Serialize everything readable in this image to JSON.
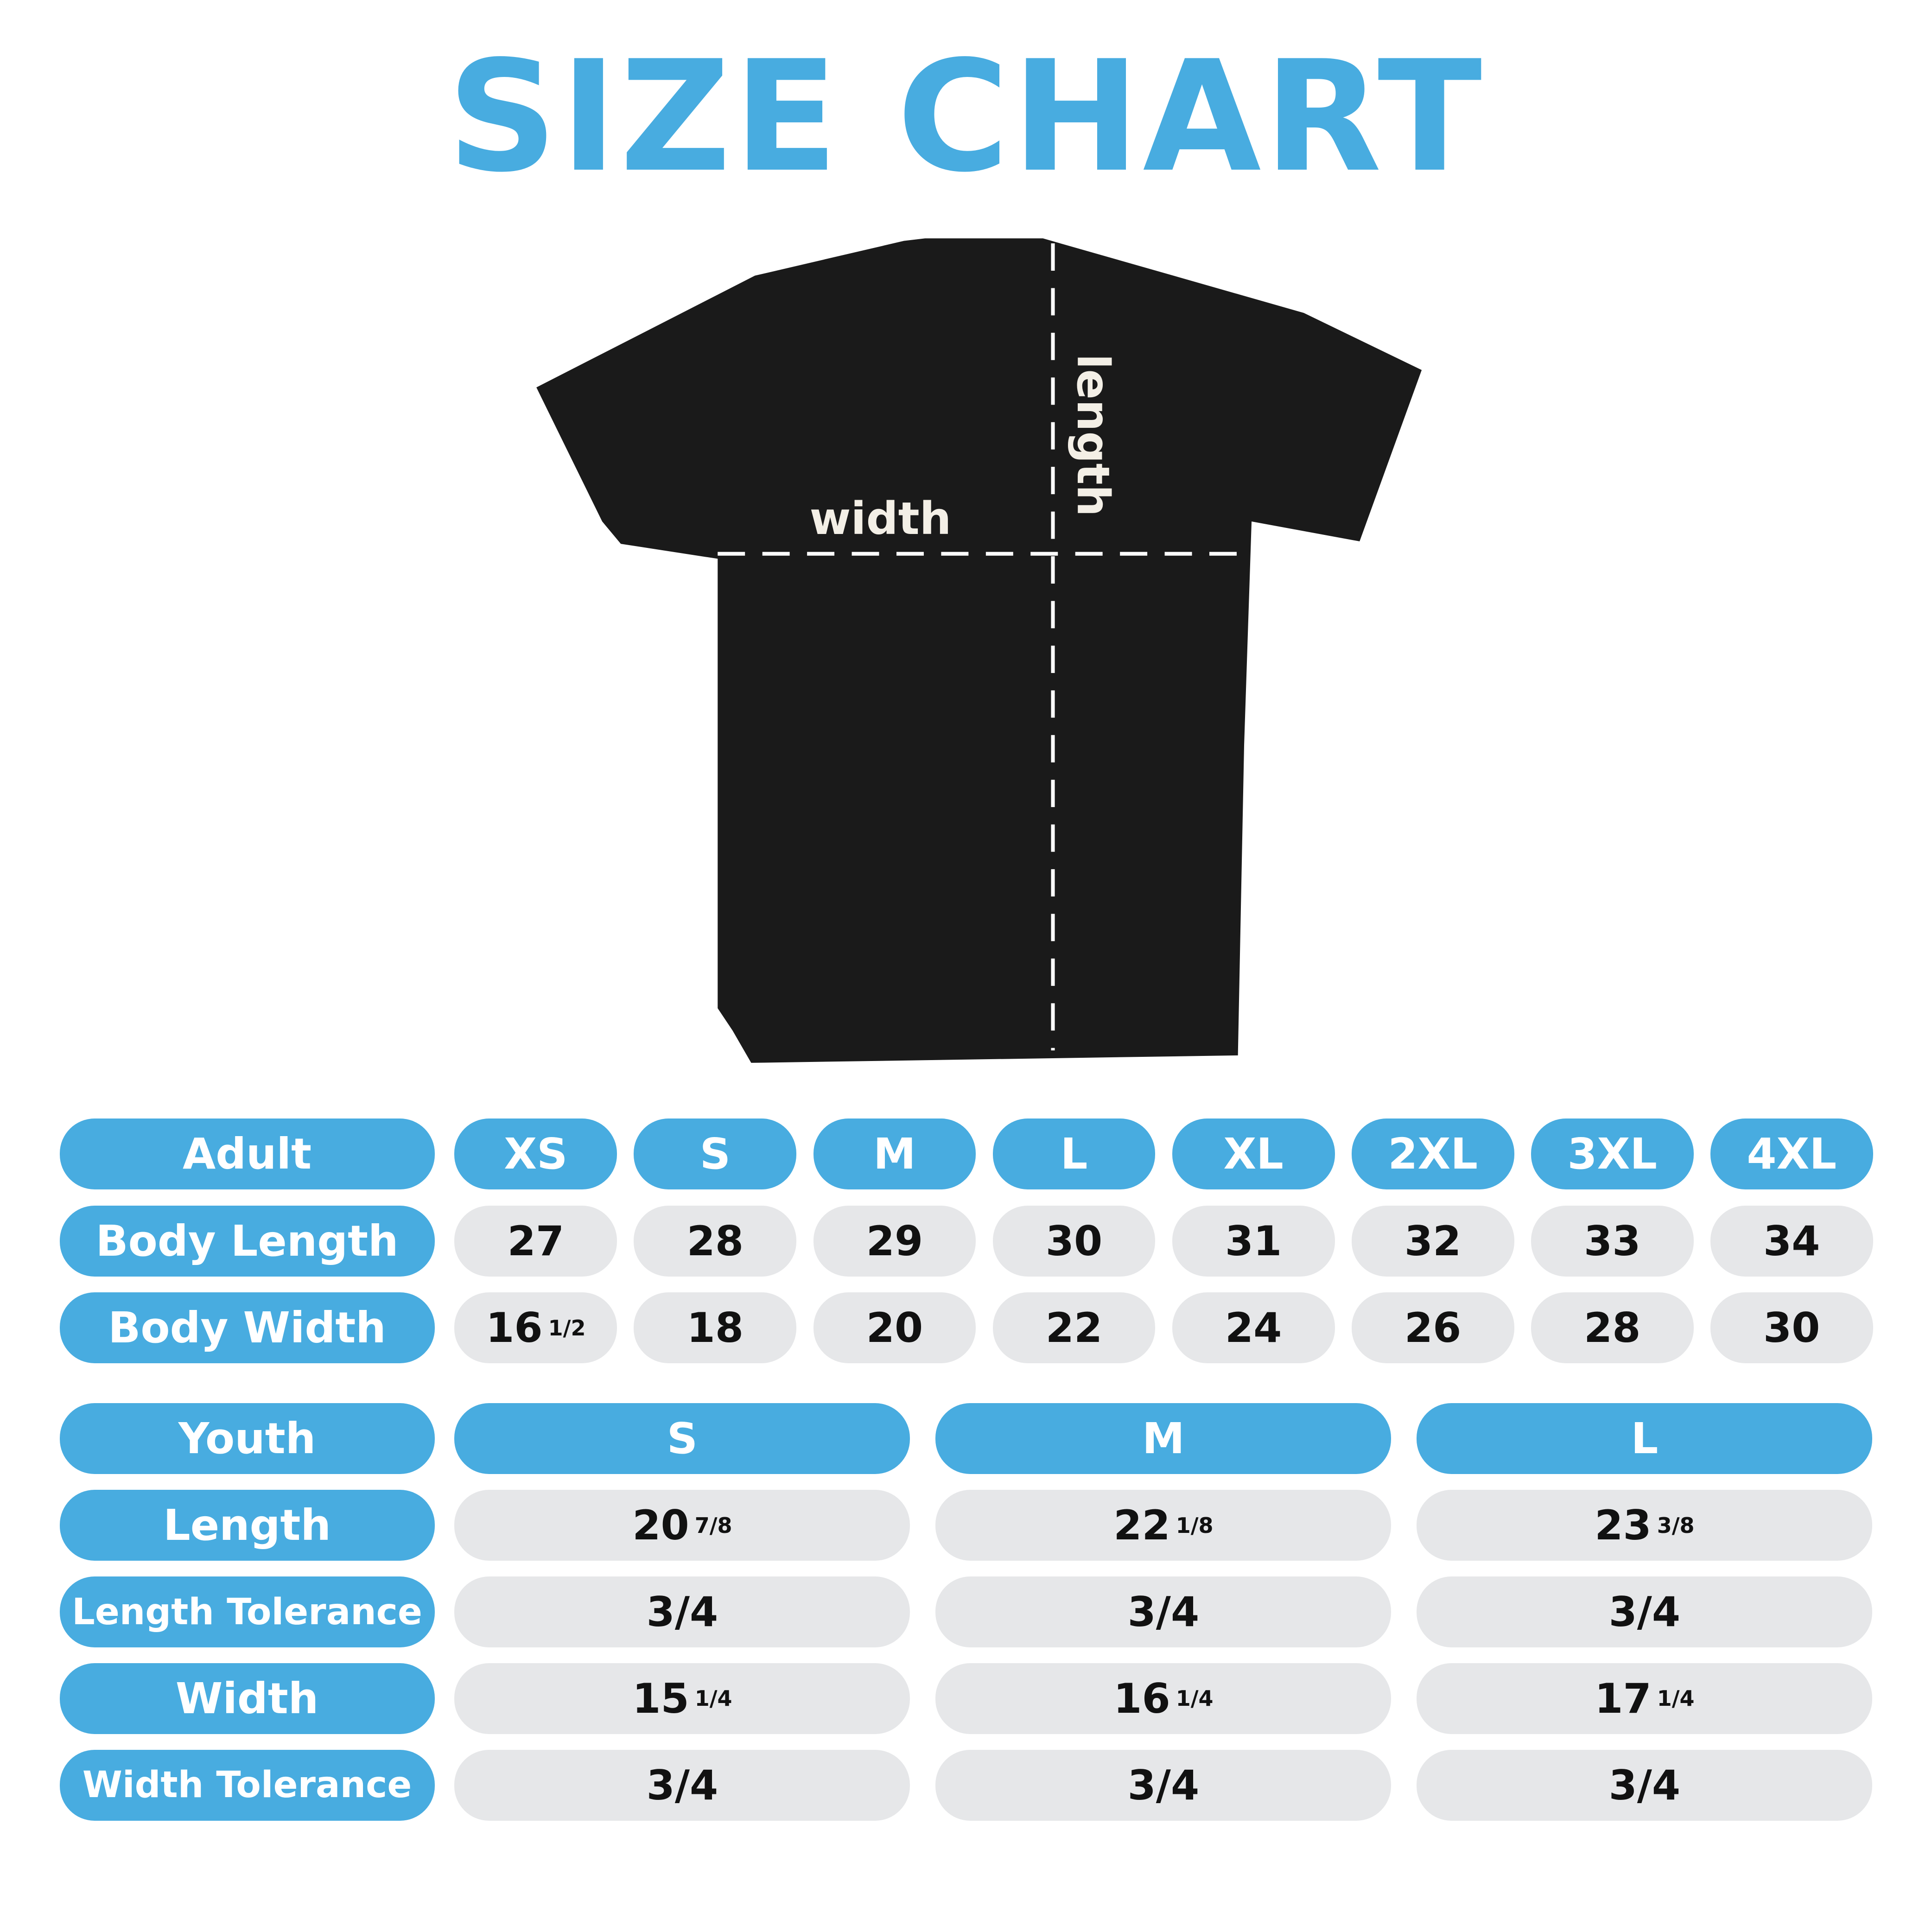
{
  "title": "SIZE CHART",
  "colors": {
    "accent": "#48ACE0",
    "cell_bg": "#E6E7E9",
    "shirt": "#1A1A1A"
  },
  "diagram": {
    "width_label": "width",
    "length_label": "length"
  },
  "adult": {
    "header": "Adult",
    "sizes": [
      "XS",
      "S",
      "M",
      "L",
      "XL",
      "2XL",
      "3XL",
      "4XL"
    ],
    "rows": [
      {
        "label": "Body Length",
        "values": [
          [
            "27",
            ""
          ],
          [
            "28",
            ""
          ],
          [
            "29",
            ""
          ],
          [
            "30",
            ""
          ],
          [
            "31",
            ""
          ],
          [
            "32",
            ""
          ],
          [
            "33",
            ""
          ],
          [
            "34",
            ""
          ]
        ]
      },
      {
        "label": "Body Width",
        "values": [
          [
            "16",
            "1/2"
          ],
          [
            "18",
            ""
          ],
          [
            "20",
            ""
          ],
          [
            "22",
            ""
          ],
          [
            "24",
            ""
          ],
          [
            "26",
            ""
          ],
          [
            "28",
            ""
          ],
          [
            "30",
            ""
          ]
        ]
      }
    ]
  },
  "youth": {
    "header": "Youth",
    "sizes": [
      "S",
      "M",
      "L"
    ],
    "rows": [
      {
        "label": "Length",
        "values": [
          [
            "20",
            "7/8"
          ],
          [
            "22",
            "1/8"
          ],
          [
            "23",
            "3/8"
          ]
        ]
      },
      {
        "label": "Length Tolerance",
        "values": [
          [
            "3/4",
            ""
          ],
          [
            "3/4",
            ""
          ],
          [
            "3/4",
            ""
          ]
        ]
      },
      {
        "label": "Width",
        "values": [
          [
            "15",
            "1/4"
          ],
          [
            "16",
            "1/4"
          ],
          [
            "17",
            "1/4"
          ]
        ]
      },
      {
        "label": "Width Tolerance",
        "values": [
          [
            "3/4",
            ""
          ],
          [
            "3/4",
            ""
          ],
          [
            "3/4",
            ""
          ]
        ]
      }
    ]
  }
}
